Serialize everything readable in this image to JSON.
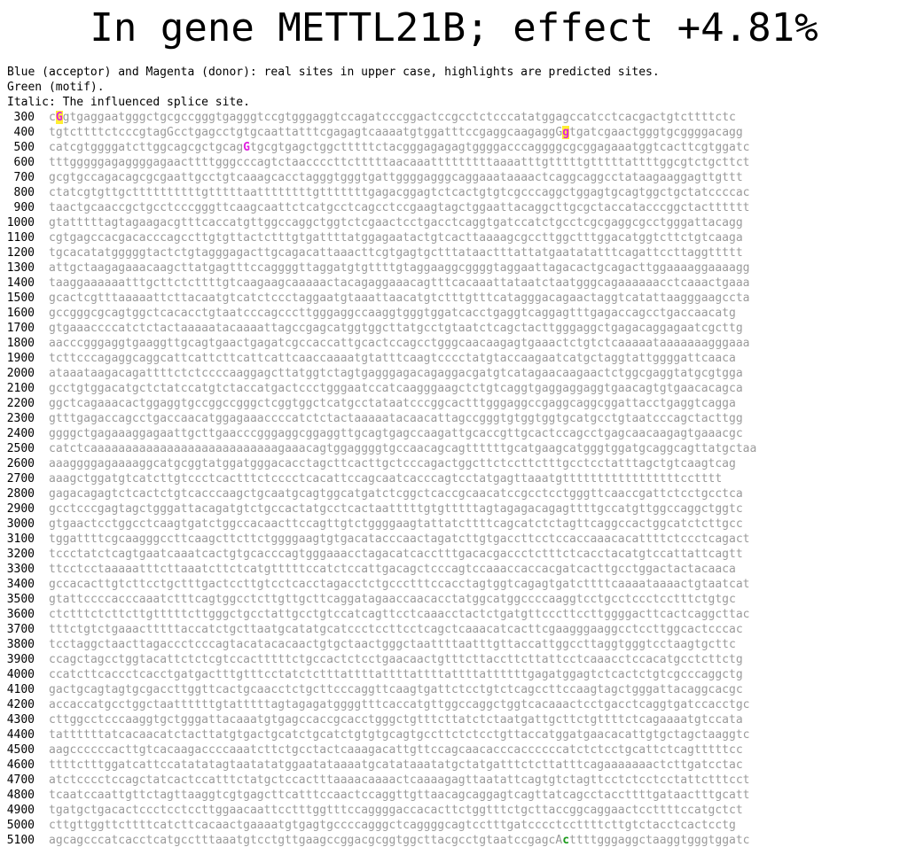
{
  "title": "In gene METTL21B; effect +4.81%",
  "legend": [
    "Blue (acceptor) and Magenta (donor): real sites in upper case, highlights are predicted sites.",
    "Green (motif).",
    "Italic: The influenced splice site."
  ],
  "colors": {
    "sequence_text": "#9a9a9a",
    "donor": "#e020e0",
    "acceptor": "#1a1aff",
    "motif": "#1a9a1a",
    "highlight": "#ffee33",
    "label": "#000000"
  },
  "rows": [
    {
      "pos": "300",
      "seq": "cGgtgaggaatgggctgcgccgggtgagggtccgtgggaggtccagatcccggactccgcctctcccatatggagccatcctcacgactgtcttttctc"
    },
    {
      "pos": "400",
      "seq": "tgtcttttctcccgtagGcctgagcctgtgcaattatttcgagagtcaaaatgtggatttccgaggcaagaggGgtgatcgaactgggtgcggggacagg"
    },
    {
      "pos": "500",
      "seq": "catcgtggggatcttggcagcgctgcagGtgcgtgagctggctttttctacgggagagagtggggacccaggggcgcggagaaatggtcacttcgtggatc"
    },
    {
      "pos": "600",
      "seq": "tttgggggagaggggagaacttttgggcccagtctaaccccttctttttaacaaatttttttttaaaatttgtttttgtttttattttggcgtctgcttct"
    },
    {
      "pos": "700",
      "seq": "gcgtgccagacagcgcgaattgcctgtcaaagcacctagggtgggtgattggggagggcaggaaataaaactcaggcaggcctataagaaggagttgttt"
    },
    {
      "pos": "800",
      "seq": "ctatcgtgttgcttttttttttgtttttaattttttttgtttttttgagacggagtctcactgtgtcgcccaggctggagtgcagtggctgctatccccac"
    },
    {
      "pos": "900",
      "seq": "taactgcaaccgctgcctcccgggttcaagcaattctcatgcctcagcctccgaagtagctggaattacaggcttgcgctaccatacccggctactttttt"
    },
    {
      "pos": "1000",
      "seq": "gtatttttagtagaagacgtttcaccatgttggccaggctggtctcgaactcctgacctcaggtgatccatctgcctcgcgaggcgcctgggattacagg"
    },
    {
      "pos": "1100",
      "seq": "cgtgagccacgacacccagccttgtgttactctttgtgattttatggagaatactgtcacttaaaagcgccttggctttggacatggtcttctgtcaaga"
    },
    {
      "pos": "1200",
      "seq": "tgcacatatgggggtactctgtagggagacttgcagacattaaacttcgtgagtgctttataactttattatgaatatatttcagattccttaggttttt"
    },
    {
      "pos": "1300",
      "seq": "attgctaagagaaacaagcttatgagtttccaggggttaggatgtgttttgtaggaaggcggggtaggaattagacactgcagacttggaaaaggaaaagg"
    },
    {
      "pos": "1400",
      "seq": "taaggaaaaaatttgcttctcttttgtcaagaagcaaaaactacagaggaaacagtttcacaaattataatctaatgggcagaaaaaacctcaaactgaaa"
    },
    {
      "pos": "1500",
      "seq": "gcactcgtttaaaaattcttacaatgtcatctccctaggaatgtaaattaacatgtctttgtttcatagggacagaactaggtcatattaagggaagccta"
    },
    {
      "pos": "1600",
      "seq": "gccgggcgcagtggctcacacctgtaatcccagcccttgggaggccaaggtgggtggatcacctgaggtcaggagtttgagaccagcctgaccaacatg"
    },
    {
      "pos": "1700",
      "seq": "gtgaaaccccatctctactaaaaatacaaaattagccgagcatggtggcttatgcctgtaatctcagctacttgggaggctgagacaggagaatcgcttg"
    },
    {
      "pos": "1800",
      "seq": "aacccgggaggtgaaggttgcagtgaactgagatcgccaccattgcactccagcctgggcaacaagagtgaaactctgtctcaaaaataaaaaaagggaaa"
    },
    {
      "pos": "1900",
      "seq": "tcttcccagaggcaggcattcattcttcattcattcaaccaaaatgtatttcaagtcccctatgtaccaagaatcatgctaggtattggggattcaaca"
    },
    {
      "pos": "2000",
      "seq": "ataaataagacagattttctctccccaaggagcttatggtctagtgagggagacagaggacgatgtcatagaacaagaactctggcgaggtatgcgtgga"
    },
    {
      "pos": "2100",
      "seq": "gcctgtggacatgctctatccatgtctaccatgactccctgggaatccatcaagggaagctctgtcaggtgaggaggaggtgaacagtgtgaacacagca"
    },
    {
      "pos": "2200",
      "seq": "ggctcagaaacactggaggtgccggccgggctcggtggctcatgcctataatcccggcactttgggaggccgaggcaggcggattacctgaggtcagga"
    },
    {
      "pos": "2300",
      "seq": "gtttgagaccagcctgaccaacatggagaaaccccatctctactaaaaatacaacattagccgggtgtggtggtgcatgcctgtaatcccagctacttgg"
    },
    {
      "pos": "2400",
      "seq": "ggggctgagaaaggagaattgcttgaacccgggaggcggaggttgcagtgagccaagattgcaccgttgcactccagcctgagcaacaagagtgaaacgc"
    },
    {
      "pos": "2500",
      "seq": "catctcaaaaaaaaaaaaaaaaaaaaaaaaaaagaaacagtggaggggtgccaacagcagttttttgcatgaagcatgggtggatgcaggcagttatgctaa"
    },
    {
      "pos": "2600",
      "seq": "aaaggggagaaaaggcatgcggtatggatgggacacctagcttcacttgctcccagactggcttctccttctttgcctcctatttagctgtcaagtcag"
    },
    {
      "pos": "2700",
      "seq": "aaagctggatgtcatcttgtccctcactttctcccctcacattccagcaatcacccagtcctatgagttaaatgtttttttttttttttttcctttt"
    },
    {
      "pos": "2800",
      "seq": "gagacagagtctcactctgtcacccaagctgcaatgcagtggcatgatctcggctcaccgcaacatccgcctcctgggttcaaccgattctcctgcctca"
    },
    {
      "pos": "2900",
      "seq": "gcctcccgagtagctgggattacagatgtctgccactatgcctcactaatttttgtgtttttagtagagacagagttttgccatgttggccaggctggtc"
    },
    {
      "pos": "3000",
      "seq": "gtgaactcctggcctcaagtgatctggccacaacttccagttgtctggggaagtattatcttttcagcatctctagttcaggccactggcatctcttgcc"
    },
    {
      "pos": "3100",
      "seq": "tggattttcgcaagggccttcaagcttcttctggggaagtgtgacatacccaactagatcttgtgaccttcctccaccaaacacattttctccctcagact"
    },
    {
      "pos": "3200",
      "seq": "tccctatctcagtgaatcaaatcactgtgcacccagtgggaaacctagacatcacctttgacacgaccctctttctcacctacatgtccattattcagtt"
    },
    {
      "pos": "3300",
      "seq": "ttcctcctaaaaatttcttaaatcttctcatgtttttccatctccattgacagctcccagtccaaaccaccacgatcacttgcctggactactacaaca"
    },
    {
      "pos": "3400",
      "seq": "gccacacttgtcttcctgctttgactccttgtcctcacctagacctctgccctttccacctagtggtcagagtgatcttttcaaaataaaactgtaatcat"
    },
    {
      "pos": "3500",
      "seq": "gtattccccacccaaatctttcagtggcctcttgttgcttcaggatagaaccaacacctatggcatggccccaaggtcctgcctccctcctttctgtgc"
    },
    {
      "pos": "3600",
      "seq": "ctctttctcttcttgtttttcttgggctgcctattgcctgtccatcagttcctcaaacctactctgatgttcccttccttggggacttcactcaggcttac"
    },
    {
      "pos": "3700",
      "seq": "tttctgtctgaaactttttaccatctgcttaatgcatatgcatccctccttcctcagctcaaacatcacttcgaagggaaggcctccttggcactcccac"
    },
    {
      "pos": "3800",
      "seq": "tcctaggctaacttagaccctcccagtacatacacaactgtgctaactgggctaattttaatttgttaccattggccttaggtgggtcctaagtgcttc"
    },
    {
      "pos": "3900",
      "seq": "ccagctagcctggtacattctctcgtccactttttctgccactctcctgaacaactgtttcttaccttcttattcctcaaacctccacatgcctcttctg"
    },
    {
      "pos": "4000",
      "seq": "ccatcttcaccctcacctgatgactttgtttcctatctctttattttattttattttattttattttttgagatggagtctcactctgtcgcccaggctg"
    },
    {
      "pos": "4100",
      "seq": "gactgcagtagtgcgaccttggttcactgcaacctctgcttcccaggttcaagtgattctcctgtctcagccttccaagtagctgggattacaggcacgc"
    },
    {
      "pos": "4200",
      "seq": "accaccatgcctggctaattttttgtatttttagtagagatggggtttcaccatgttggccaggctggtcacaaactcctgacctcaggtgatccacctgc"
    },
    {
      "pos": "4300",
      "seq": "cttggcctcccaaggtgctgggattacaaatgtgagccaccgcacctgggctgtttcttatctctaatgattgcttctgttttctcagaaaatgtccata"
    },
    {
      "pos": "4400",
      "seq": "tattttttatcacaacatctacttatgtgactgcatctgcatctgtgtgcagtgccttctctcctgttaccatggatgaacacattgtgctagctaaggtc"
    },
    {
      "pos": "4500",
      "seq": "aagccccccacttgtcacaagaccccaaatcttctgcctactcaaagacattgttccagcaacacccaccccccatctctcctgcattctcagtttttcc"
    },
    {
      "pos": "4600",
      "seq": "ttttctttggatcattccatatatagtaatatatggaatataaaatgcatataaatatgctatgatttctcttatttcagaaaaaaactcttgatcctac"
    },
    {
      "pos": "4700",
      "seq": "atctcccctccagctatcactccatttctatgctccactttaaaacaaaactcaaaagagttaatattcagtgtctagttcctctcctcctattctttcct"
    },
    {
      "pos": "4800",
      "seq": "tcaatccaattgttctagttaaggtcgtgagcttcatttccaactccaggttgttaacagcaggagtcagttatcagcctaccttttgataactttgcatt"
    },
    {
      "pos": "4900",
      "seq": "tgatgctgacactccctcctccttggaacaattcctttggtttccaggggaccacacttctggtttctgcttaccggcaggaactccttttccatgctct"
    },
    {
      "pos": "5000",
      "seq": "cttgttggttcttttcatcttcacaactgaaaatgtgagtgccccagggctcaggggcagtcctttgatcccctccttttcttgtctacctcactcctg"
    },
    {
      "pos": "5100",
      "seq": "agcagcccatcacctcatgcctttaaatgtcctgttgaagccggacgcggtggcttacgcctgtaatccgagcActtttgggaggctaaggtgggtggatc"
    }
  ],
  "marks": [
    {
      "row": 0,
      "col": 1,
      "type": "donor",
      "highlight": true
    },
    {
      "row": 1,
      "col": 17,
      "type": "acceptor_black",
      "highlight": true
    },
    {
      "row": 1,
      "col": 74,
      "type": "donor",
      "highlight": true
    },
    {
      "row": 2,
      "col": 28,
      "type": "donor",
      "highlight": false
    },
    {
      "row": 48,
      "col": 74,
      "type": "motif",
      "highlight": false
    }
  ]
}
